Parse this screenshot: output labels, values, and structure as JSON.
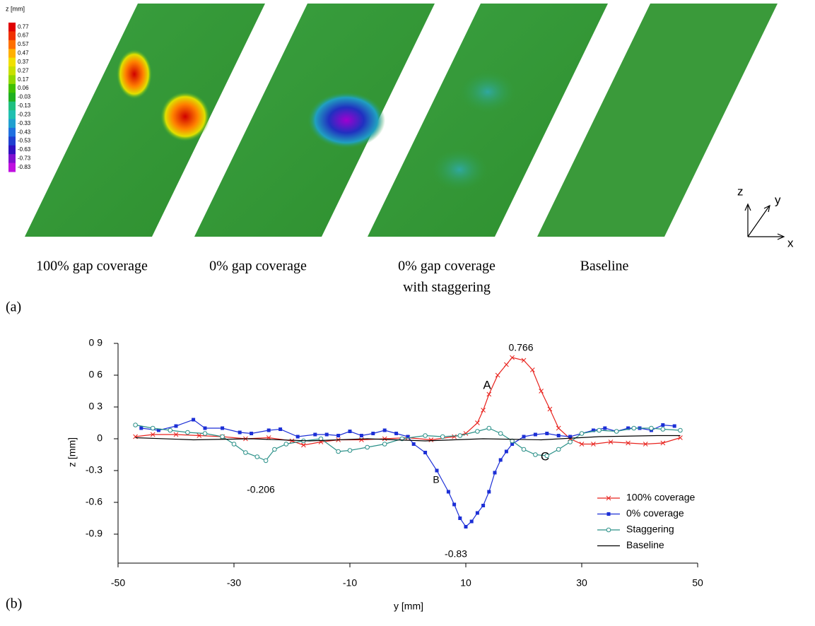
{
  "panel_a": {
    "colorbar": {
      "title": "z [mm]",
      "ticks": [
        0.77,
        0.67,
        0.57,
        0.47,
        0.37,
        0.27,
        0.17,
        0.06,
        -0.03,
        -0.13,
        -0.23,
        -0.33,
        -0.43,
        -0.53,
        -0.63,
        -0.73,
        -0.83
      ],
      "colors": [
        "#e00000",
        "#f03000",
        "#ff7000",
        "#ffb000",
        "#f0e000",
        "#c8e000",
        "#90d800",
        "#40c000",
        "#20b020",
        "#20c080",
        "#20c0b0",
        "#20a0d0",
        "#2070e0",
        "#2040d0",
        "#3010c0",
        "#8010d0",
        "#c010e0"
      ]
    },
    "captions": [
      [
        "100% gap coverage"
      ],
      [
        "0% gap coverage"
      ],
      [
        "0% gap coverage",
        "with staggering"
      ],
      [
        "Baseline"
      ]
    ],
    "axes_labels": [
      "z",
      "y",
      "x"
    ],
    "label": "(a)"
  },
  "chart_data": {
    "type": "line",
    "panel_label": "(b)",
    "x_label": "y [mm]",
    "y_label": "z [mm]",
    "xlim": [
      -50,
      50
    ],
    "xticks": [
      -50,
      -30,
      -10,
      10,
      30,
      50
    ],
    "ylim": [
      -1.2,
      0.9
    ],
    "yticks": [
      {
        "value": 0.9,
        "label": "0 9"
      },
      {
        "value": 0.6,
        "label": "0 6"
      },
      {
        "value": 0.3,
        "label": "0 3"
      },
      0,
      -0.3,
      -0.6,
      -0.9
    ],
    "grid": false,
    "legend": "lower right",
    "annotations": [
      "0.766",
      "A",
      "B",
      "-0.83",
      "C",
      "-0.206"
    ],
    "series": [
      {
        "name": "100% coverage",
        "color": "#e8231e",
        "marker": "x",
        "x": [
          -47,
          -44,
          -40,
          -36,
          -32,
          -28,
          -24,
          -20,
          -18,
          -15,
          -12,
          -8,
          -4,
          0,
          4,
          8,
          10,
          12,
          13,
          14,
          15.5,
          17,
          18,
          20,
          21.5,
          23,
          24.5,
          26,
          28,
          30,
          32,
          35,
          38,
          41,
          44,
          47
        ],
        "values": [
          0.02,
          0.04,
          0.04,
          0.03,
          0.02,
          0.0,
          0.01,
          -0.02,
          -0.06,
          -0.03,
          -0.01,
          -0.01,
          0.0,
          0.01,
          -0.01,
          0.02,
          0.05,
          0.15,
          0.27,
          0.42,
          0.6,
          0.7,
          0.766,
          0.74,
          0.65,
          0.45,
          0.28,
          0.1,
          0.0,
          -0.05,
          -0.05,
          -0.03,
          -0.04,
          -0.05,
          -0.04,
          0.01
        ]
      },
      {
        "name": "0% coverage",
        "color": "#1c2fd6",
        "marker": "square",
        "x": [
          -46,
          -43,
          -40,
          -37,
          -35,
          -32,
          -29,
          -27,
          -24,
          -22,
          -19,
          -16,
          -14,
          -12,
          -10,
          -8,
          -6,
          -4,
          -2,
          0,
          1,
          3,
          5,
          7,
          8,
          9,
          10,
          11,
          12,
          13,
          14,
          15,
          16,
          17,
          18,
          20,
          22,
          24,
          26,
          28,
          30,
          32,
          34,
          36,
          38,
          40,
          42,
          44,
          46
        ],
        "values": [
          0.1,
          0.08,
          0.12,
          0.18,
          0.1,
          0.1,
          0.06,
          0.05,
          0.08,
          0.09,
          0.02,
          0.04,
          0.04,
          0.03,
          0.07,
          0.03,
          0.05,
          0.08,
          0.05,
          0.02,
          -0.05,
          -0.13,
          -0.3,
          -0.5,
          -0.62,
          -0.75,
          -0.83,
          -0.78,
          -0.7,
          -0.63,
          -0.5,
          -0.32,
          -0.2,
          -0.12,
          -0.05,
          0.02,
          0.04,
          0.05,
          0.03,
          0.02,
          0.05,
          0.08,
          0.1,
          0.07,
          0.1,
          0.1,
          0.08,
          0.13,
          0.12
        ]
      },
      {
        "name": "Staggering",
        "color": "#2a9088",
        "marker": "circle",
        "x": [
          -47,
          -44,
          -41,
          -38,
          -35,
          -32,
          -30,
          -28,
          -26,
          -24.5,
          -23,
          -21,
          -18,
          -15,
          -12,
          -10,
          -7,
          -4,
          -1,
          3,
          6,
          9,
          12,
          14,
          16,
          18,
          20,
          22,
          24,
          26,
          28,
          30,
          33,
          36,
          39,
          42,
          44,
          47
        ],
        "values": [
          0.13,
          0.1,
          0.08,
          0.06,
          0.05,
          0.02,
          -0.05,
          -0.13,
          -0.17,
          -0.206,
          -0.1,
          -0.05,
          -0.02,
          0.0,
          -0.12,
          -0.11,
          -0.08,
          -0.05,
          0.0,
          0.03,
          0.02,
          0.03,
          0.07,
          0.1,
          0.05,
          -0.02,
          -0.1,
          -0.15,
          -0.16,
          -0.1,
          -0.03,
          0.05,
          0.08,
          0.07,
          0.1,
          0.1,
          0.09,
          0.08
        ]
      },
      {
        "name": "Baseline",
        "color": "#000000",
        "marker": "none",
        "x": [
          -47,
          -37,
          -27,
          -17,
          -7,
          3,
          13,
          23,
          33,
          43,
          47
        ],
        "values": [
          0.01,
          -0.01,
          0.0,
          -0.02,
          0.0,
          -0.02,
          0.0,
          -0.01,
          0.02,
          0.03,
          0.03
        ]
      }
    ]
  }
}
